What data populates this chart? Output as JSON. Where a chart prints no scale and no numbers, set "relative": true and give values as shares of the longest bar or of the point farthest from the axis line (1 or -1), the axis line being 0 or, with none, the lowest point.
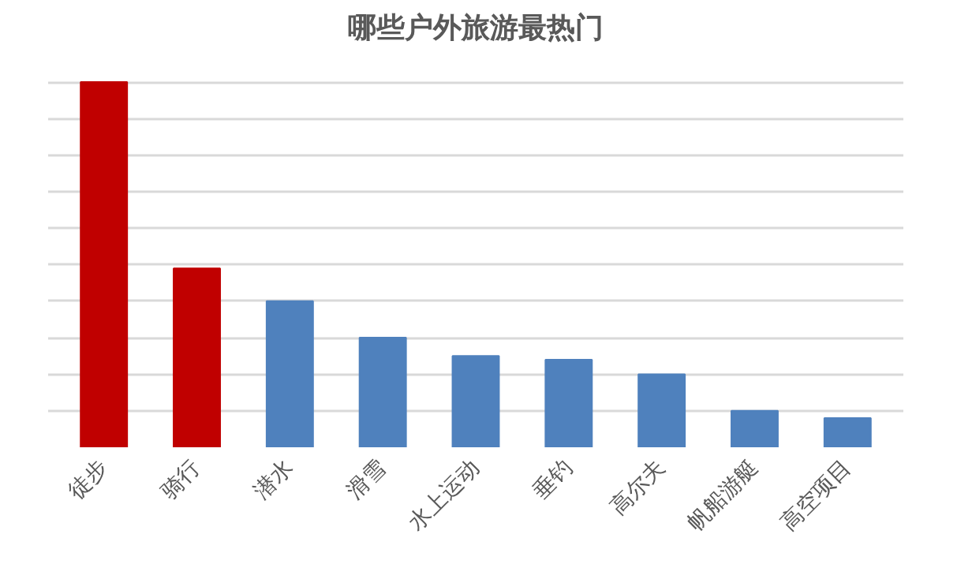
{
  "chart_data": {
    "type": "bar",
    "title": "哪些户外旅游最热门",
    "categories": [
      "徒步",
      "骑行",
      "潜水",
      "滑雪",
      "水上运动",
      "垂钓",
      "高尔夫",
      "帆船游艇",
      "高空项目"
    ],
    "values": [
      1,
      0.49,
      0.4,
      0.3,
      0.25,
      0.24,
      0.2,
      0.1,
      0.08
    ],
    "colors": [
      "#c00000",
      "#c00000",
      "#4f81bd",
      "#4f81bd",
      "#4f81bd",
      "#4f81bd",
      "#4f81bd",
      "#4f81bd",
      "#4f81bd"
    ],
    "relative": true,
    "grid": "y"
  }
}
